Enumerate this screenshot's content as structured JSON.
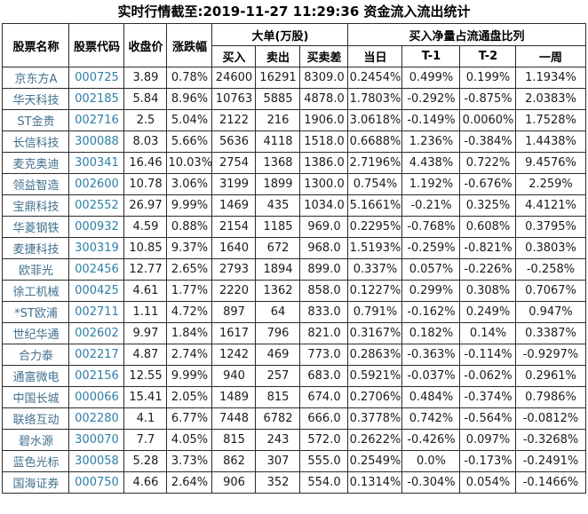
{
  "title": "实时行情截至:2019-11-27 11:29:36 资金流入流出统计",
  "table": {
    "headers": {
      "name": "股票名称",
      "code": "股票代码",
      "close": "收盘价",
      "change": "涨跌幅",
      "big_orders_group": "大单(万股)",
      "buy": "买入",
      "sell": "卖出",
      "diff": "买卖差",
      "ratio_group": "买入净量占流通盘比列",
      "today": "当日",
      "t1": "T-1",
      "t2": "T-2",
      "week": "一周"
    },
    "rows": [
      {
        "name": "京东方A",
        "code": "000725",
        "close": "3.89",
        "change": "0.78%",
        "buy": "24600",
        "sell": "16291",
        "diff": "8309.0",
        "today": "0.2454%",
        "t1": "0.499%",
        "t2": "0.199%",
        "week": "1.1934%"
      },
      {
        "name": "华天科技",
        "code": "002185",
        "close": "5.84",
        "change": "8.96%",
        "buy": "10763",
        "sell": "5885",
        "diff": "4878.0",
        "today": "1.7803%",
        "t1": "-0.292%",
        "t2": "-0.875%",
        "week": "2.0383%"
      },
      {
        "name": "ST金贵",
        "code": "002716",
        "close": "2.5",
        "change": "5.04%",
        "buy": "2122",
        "sell": "216",
        "diff": "1906.0",
        "today": "3.0618%",
        "t1": "-0.149%",
        "t2": "0.0060%",
        "week": "1.7528%"
      },
      {
        "name": "长信科技",
        "code": "300088",
        "close": "8.03",
        "change": "5.66%",
        "buy": "5636",
        "sell": "4118",
        "diff": "1518.0",
        "today": "0.6688%",
        "t1": "1.236%",
        "t2": "-0.384%",
        "week": "1.4438%"
      },
      {
        "name": "麦克奥迪",
        "code": "300341",
        "close": "16.46",
        "change": "10.03%",
        "buy": "2754",
        "sell": "1368",
        "diff": "1386.0",
        "today": "2.7196%",
        "t1": "4.438%",
        "t2": "0.722%",
        "week": "9.4576%"
      },
      {
        "name": "领益智造",
        "code": "002600",
        "close": "10.78",
        "change": "3.06%",
        "buy": "3199",
        "sell": "1899",
        "diff": "1300.0",
        "today": "0.754%",
        "t1": "1.192%",
        "t2": "-0.676%",
        "week": "2.259%"
      },
      {
        "name": "宝鼎科技",
        "code": "002552",
        "close": "26.97",
        "change": "9.99%",
        "buy": "1469",
        "sell": "435",
        "diff": "1034.0",
        "today": "5.1661%",
        "t1": "-0.21%",
        "t2": "0.325%",
        "week": "4.4121%"
      },
      {
        "name": "华菱钢铁",
        "code": "000932",
        "close": "4.59",
        "change": "0.88%",
        "buy": "2154",
        "sell": "1185",
        "diff": "969.0",
        "today": "0.2295%",
        "t1": "-0.768%",
        "t2": "0.608%",
        "week": "0.3795%"
      },
      {
        "name": "麦捷科技",
        "code": "300319",
        "close": "10.85",
        "change": "9.37%",
        "buy": "1640",
        "sell": "672",
        "diff": "968.0",
        "today": "1.5193%",
        "t1": "-0.259%",
        "t2": "-0.821%",
        "week": "0.3803%"
      },
      {
        "name": "欧菲光",
        "code": "002456",
        "close": "12.77",
        "change": "2.65%",
        "buy": "2793",
        "sell": "1894",
        "diff": "899.0",
        "today": "0.337%",
        "t1": "0.057%",
        "t2": "-0.226%",
        "week": "-0.258%"
      },
      {
        "name": "徐工机械",
        "code": "000425",
        "close": "4.61",
        "change": "1.77%",
        "buy": "2220",
        "sell": "1362",
        "diff": "858.0",
        "today": "0.1227%",
        "t1": "0.299%",
        "t2": "0.308%",
        "week": "0.7067%"
      },
      {
        "name": "*ST欧浦",
        "code": "002711",
        "close": "1.11",
        "change": "4.72%",
        "buy": "897",
        "sell": "64",
        "diff": "833.0",
        "today": "0.791%",
        "t1": "-0.162%",
        "t2": "0.249%",
        "week": "0.947%"
      },
      {
        "name": "世纪华通",
        "code": "002602",
        "close": "9.97",
        "change": "1.84%",
        "buy": "1617",
        "sell": "796",
        "diff": "821.0",
        "today": "0.3167%",
        "t1": "0.182%",
        "t2": "0.14%",
        "week": "0.3387%"
      },
      {
        "name": "合力泰",
        "code": "002217",
        "close": "4.87",
        "change": "2.74%",
        "buy": "1242",
        "sell": "469",
        "diff": "773.0",
        "today": "0.2863%",
        "t1": "-0.363%",
        "t2": "-0.114%",
        "week": "-0.9297%"
      },
      {
        "name": "通富微电",
        "code": "002156",
        "close": "12.55",
        "change": "9.99%",
        "buy": "940",
        "sell": "257",
        "diff": "683.0",
        "today": "0.5921%",
        "t1": "-0.037%",
        "t2": "-0.062%",
        "week": "0.2961%"
      },
      {
        "name": "中国长城",
        "code": "000066",
        "close": "15.41",
        "change": "2.05%",
        "buy": "1489",
        "sell": "815",
        "diff": "674.0",
        "today": "0.2706%",
        "t1": "0.484%",
        "t2": "-0.374%",
        "week": "0.7986%"
      },
      {
        "name": "联络互动",
        "code": "002280",
        "close": "4.1",
        "change": "6.77%",
        "buy": "7448",
        "sell": "6782",
        "diff": "666.0",
        "today": "0.3778%",
        "t1": "0.742%",
        "t2": "-0.564%",
        "week": "-0.0812%"
      },
      {
        "name": "碧水源",
        "code": "300070",
        "close": "7.7",
        "change": "4.05%",
        "buy": "815",
        "sell": "243",
        "diff": "572.0",
        "today": "0.2622%",
        "t1": "-0.426%",
        "t2": "0.097%",
        "week": "-0.3268%"
      },
      {
        "name": "蓝色光标",
        "code": "300058",
        "close": "5.28",
        "change": "3.73%",
        "buy": "862",
        "sell": "307",
        "diff": "555.0",
        "today": "0.2549%",
        "t1": "0.0%",
        "t2": "-0.173%",
        "week": "-0.2491%"
      },
      {
        "name": "国海证券",
        "code": "000750",
        "close": "4.66",
        "change": "2.64%",
        "buy": "906",
        "sell": "352",
        "diff": "554.0",
        "today": "0.1314%",
        "t1": "-0.304%",
        "t2": "0.054%",
        "week": "-0.1466%"
      }
    ]
  },
  "colors": {
    "stock_name_link": "#41708f",
    "stock_code_link": "#2d7fa6",
    "table_border": "#2b2b2b",
    "text": "#1a1a1a",
    "background": "#ffffff"
  }
}
